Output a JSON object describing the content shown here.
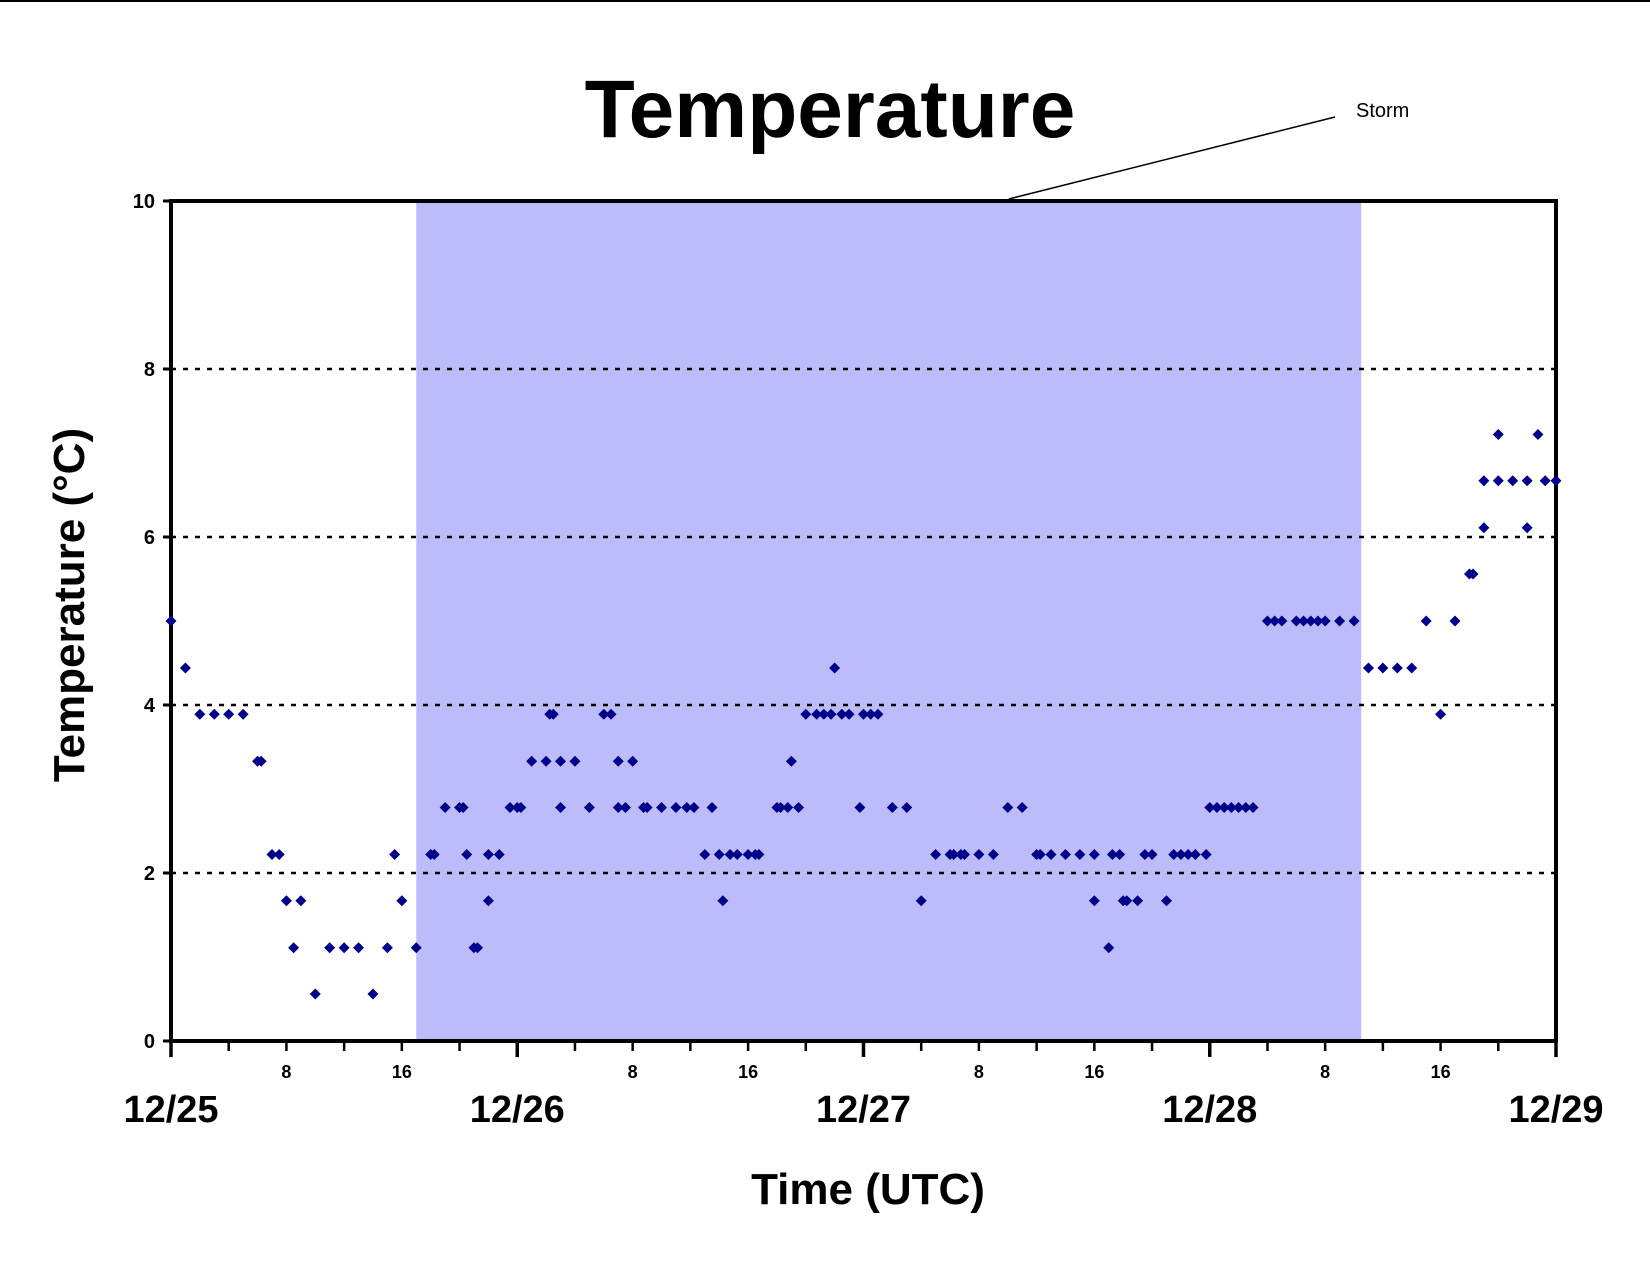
{
  "chart_data": {
    "type": "scatter",
    "title": "Temperature",
    "xlabel": "Time (UTC)",
    "ylabel": "Temperature (°C)",
    "ylim": [
      0,
      10
    ],
    "yticks": [
      0,
      2,
      4,
      6,
      8,
      10
    ],
    "xlim": [
      "12/25 00:00",
      "12/29 00:00"
    ],
    "date_ticks": [
      "12/25",
      "12/26",
      "12/27",
      "12/28",
      "12/29"
    ],
    "hour_ticks": [
      "8",
      "16"
    ],
    "grid": "horizontal dotted at 2, 4, 6, 8",
    "legend": "none",
    "marker": "diamond",
    "marker_color": "#00008b",
    "shade_color": "#bcbcfb",
    "annotations": [
      {
        "text": "Storm",
        "x_start": "12/25 17:00",
        "x_end": "12/28 10:30"
      }
    ],
    "series": [
      {
        "points": [
          [
            "12/25 00:00",
            5.0
          ],
          [
            "12/25 01:00",
            4.44
          ],
          [
            "12/25 02:00",
            3.89
          ],
          [
            "12/25 03:00",
            3.89
          ],
          [
            "12/25 04:00",
            3.89
          ],
          [
            "12/25 05:00",
            3.89
          ],
          [
            "12/25 06:00",
            3.33
          ],
          [
            "12/25 06:15",
            3.33
          ],
          [
            "12/25 07:00",
            2.22
          ],
          [
            "12/25 07:30",
            2.22
          ],
          [
            "12/25 08:00",
            1.67
          ],
          [
            "12/25 08:30",
            1.11
          ],
          [
            "12/25 09:00",
            1.67
          ],
          [
            "12/25 10:00",
            0.56
          ],
          [
            "12/25 11:00",
            1.11
          ],
          [
            "12/25 12:00",
            1.11
          ],
          [
            "12/25 13:00",
            1.11
          ],
          [
            "12/25 14:00",
            0.56
          ],
          [
            "12/25 15:00",
            1.11
          ],
          [
            "12/25 15:30",
            2.22
          ],
          [
            "12/25 16:00",
            1.67
          ],
          [
            "12/25 17:00",
            1.11
          ],
          [
            "12/25 18:00",
            2.22
          ],
          [
            "12/25 18:15",
            2.22
          ],
          [
            "12/25 19:00",
            2.78
          ],
          [
            "12/25 20:00",
            2.78
          ],
          [
            "12/25 20:15",
            2.78
          ],
          [
            "12/25 20:30",
            2.22
          ],
          [
            "12/25 21:00",
            1.11
          ],
          [
            "12/25 21:15",
            1.11
          ],
          [
            "12/25 22:00",
            2.22
          ],
          [
            "12/25 22:00",
            1.67
          ],
          [
            "12/25 22:45",
            2.22
          ],
          [
            "12/25 23:30",
            2.78
          ],
          [
            "12/26 00:00",
            2.78
          ],
          [
            "12/26 00:15",
            2.78
          ],
          [
            "12/26 01:00",
            3.33
          ],
          [
            "12/26 02:00",
            3.33
          ],
          [
            "12/26 02:15",
            3.89
          ],
          [
            "12/26 02:30",
            3.89
          ],
          [
            "12/26 03:00",
            2.78
          ],
          [
            "12/26 03:00",
            3.33
          ],
          [
            "12/26 04:00",
            3.33
          ],
          [
            "12/26 05:00",
            2.78
          ],
          [
            "12/26 06:00",
            3.89
          ],
          [
            "12/26 06:30",
            3.89
          ],
          [
            "12/26 07:00",
            3.33
          ],
          [
            "12/26 07:00",
            2.78
          ],
          [
            "12/26 07:30",
            2.78
          ],
          [
            "12/26 08:00",
            3.33
          ],
          [
            "12/26 08:45",
            2.78
          ],
          [
            "12/26 09:00",
            2.78
          ],
          [
            "12/26 10:00",
            2.78
          ],
          [
            "12/26 11:00",
            2.78
          ],
          [
            "12/26 11:45",
            2.78
          ],
          [
            "12/26 12:15",
            2.78
          ],
          [
            "12/26 13:00",
            2.22
          ],
          [
            "12/26 13:30",
            2.78
          ],
          [
            "12/26 14:00",
            2.22
          ],
          [
            "12/26 14:15",
            1.67
          ],
          [
            "12/26 14:45",
            2.22
          ],
          [
            "12/26 15:15",
            2.22
          ],
          [
            "12/26 16:00",
            2.22
          ],
          [
            "12/26 16:30",
            2.22
          ],
          [
            "12/26 16:45",
            2.22
          ],
          [
            "12/26 18:00",
            2.78
          ],
          [
            "12/26 18:15",
            2.78
          ],
          [
            "12/26 18:45",
            2.78
          ],
          [
            "12/26 19:00",
            3.33
          ],
          [
            "12/26 19:30",
            2.78
          ],
          [
            "12/26 20:00",
            3.89
          ],
          [
            "12/26 20:45",
            3.89
          ],
          [
            "12/26 21:15",
            3.89
          ],
          [
            "12/26 21:45",
            3.89
          ],
          [
            "12/26 22:00",
            4.44
          ],
          [
            "12/26 22:30",
            3.89
          ],
          [
            "12/26 23:00",
            3.89
          ],
          [
            "12/26 23:45",
            2.78
          ],
          [
            "12/27 00:00",
            3.89
          ],
          [
            "12/27 00:30",
            3.89
          ],
          [
            "12/27 01:00",
            3.89
          ],
          [
            "12/27 02:00",
            2.78
          ],
          [
            "12/27 03:00",
            2.78
          ],
          [
            "12/27 04:00",
            1.67
          ],
          [
            "12/27 05:00",
            2.22
          ],
          [
            "12/27 06:00",
            2.22
          ],
          [
            "12/27 06:15",
            2.22
          ],
          [
            "12/27 06:45",
            2.22
          ],
          [
            "12/27 07:00",
            2.22
          ],
          [
            "12/27 08:00",
            2.22
          ],
          [
            "12/27 09:00",
            2.22
          ],
          [
            "12/27 10:00",
            2.78
          ],
          [
            "12/27 11:00",
            2.78
          ],
          [
            "12/27 12:00",
            2.22
          ],
          [
            "12/27 12:15",
            2.22
          ],
          [
            "12/27 13:00",
            2.22
          ],
          [
            "12/27 14:00",
            2.22
          ],
          [
            "12/27 15:00",
            2.22
          ],
          [
            "12/27 16:00",
            2.22
          ],
          [
            "12/27 16:00",
            1.67
          ],
          [
            "12/27 17:00",
            1.11
          ],
          [
            "12/27 17:15",
            2.22
          ],
          [
            "12/27 17:45",
            2.22
          ],
          [
            "12/27 18:00",
            1.67
          ],
          [
            "12/27 18:15",
            1.67
          ],
          [
            "12/27 19:00",
            1.67
          ],
          [
            "12/27 19:30",
            2.22
          ],
          [
            "12/27 20:00",
            2.22
          ],
          [
            "12/27 21:00",
            1.67
          ],
          [
            "12/27 21:30",
            2.22
          ],
          [
            "12/27 22:00",
            2.22
          ],
          [
            "12/27 22:30",
            2.22
          ],
          [
            "12/27 23:00",
            2.22
          ],
          [
            "12/27 23:45",
            2.22
          ],
          [
            "12/28 00:00",
            2.78
          ],
          [
            "12/28 00:30",
            2.78
          ],
          [
            "12/28 01:00",
            2.78
          ],
          [
            "12/28 01:30",
            2.78
          ],
          [
            "12/28 02:00",
            2.78
          ],
          [
            "12/28 02:30",
            2.78
          ],
          [
            "12/28 03:00",
            2.78
          ],
          [
            "12/28 04:00",
            5.0
          ],
          [
            "12/28 04:30",
            5.0
          ],
          [
            "12/28 05:00",
            5.0
          ],
          [
            "12/28 06:00",
            5.0
          ],
          [
            "12/28 06:30",
            5.0
          ],
          [
            "12/28 07:00",
            5.0
          ],
          [
            "12/28 07:30",
            5.0
          ],
          [
            "12/28 08:00",
            5.0
          ],
          [
            "12/28 09:00",
            5.0
          ],
          [
            "12/28 10:00",
            5.0
          ],
          [
            "12/28 11:00",
            4.44
          ],
          [
            "12/28 12:00",
            4.44
          ],
          [
            "12/28 13:00",
            4.44
          ],
          [
            "12/28 14:00",
            4.44
          ],
          [
            "12/28 15:00",
            5.0
          ],
          [
            "12/28 16:00",
            3.89
          ],
          [
            "12/28 17:00",
            5.0
          ],
          [
            "12/28 18:00",
            5.56
          ],
          [
            "12/28 18:15",
            5.56
          ],
          [
            "12/28 19:00",
            6.11
          ],
          [
            "12/28 19:00",
            6.67
          ],
          [
            "12/28 20:00",
            7.22
          ],
          [
            "12/28 20:00",
            6.67
          ],
          [
            "12/28 21:00",
            6.67
          ],
          [
            "12/28 22:00",
            6.67
          ],
          [
            "12/28 22:00",
            6.11
          ],
          [
            "12/28 22:45",
            7.22
          ],
          [
            "12/28 23:15",
            6.67
          ],
          [
            "12/29 00:00",
            6.67
          ]
        ]
      }
    ]
  }
}
